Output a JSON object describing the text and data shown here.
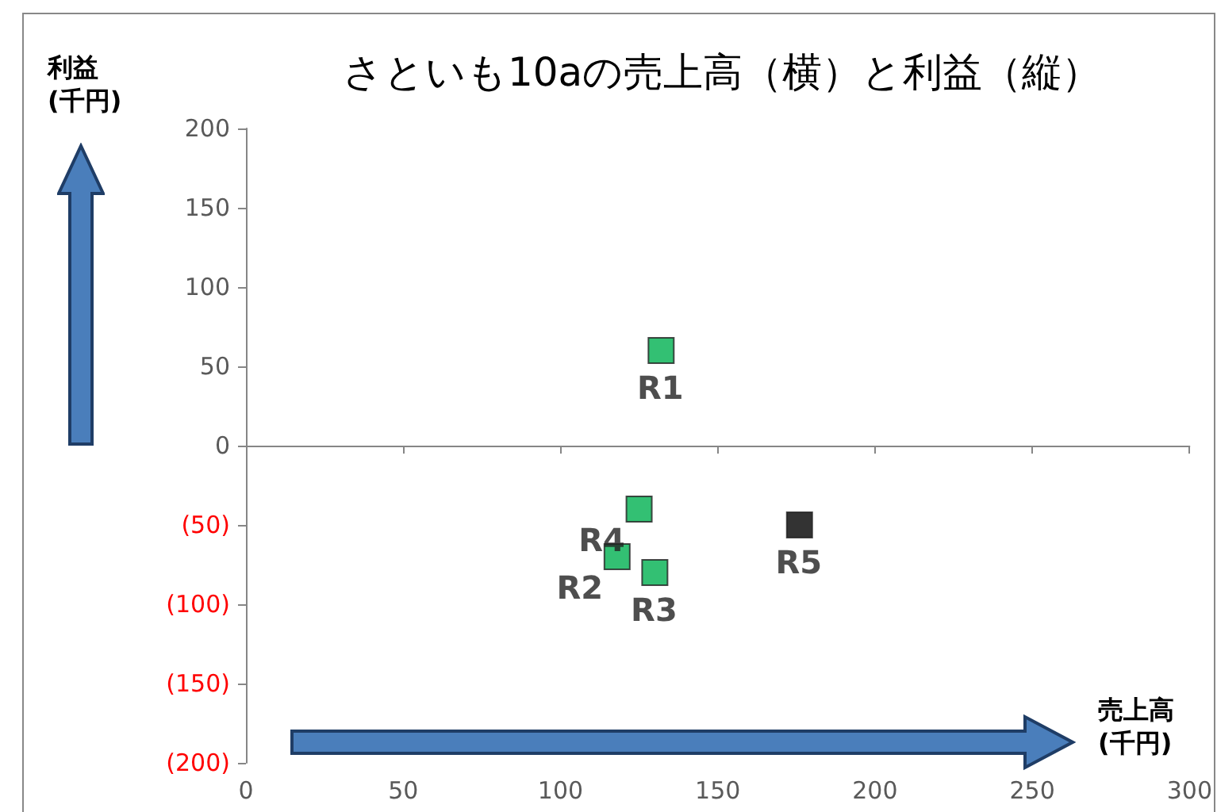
{
  "chart_data": {
    "type": "scatter",
    "title": "さといも10aの売上高（横）と利益（縦）",
    "xlabel": "売上高\n(千円)",
    "ylabel": "利益\n(千円)",
    "x": [
      132,
      118,
      130,
      125,
      176
    ],
    "series": [
      {
        "colors": [
          "#00b050",
          "#00b050",
          "#00b050",
          "#00b050",
          "#000000"
        ],
        "values": [
          60,
          -70,
          -80,
          -40,
          -50
        ],
        "value_labels": [
          "R1",
          "R2",
          "R3",
          "R4",
          "R5"
        ]
      }
    ],
    "xlim": [
      0,
      300
    ],
    "xticks": [
      0,
      50,
      100,
      150,
      200,
      250,
      300
    ],
    "ylim": [
      -200,
      200
    ],
    "yticks": [
      {
        "value": -200,
        "label": "(200)"
      },
      {
        "value": -150,
        "label": "(150)"
      },
      {
        "value": -100,
        "label": "(100)"
      },
      {
        "value": -50,
        "label": "(50)"
      },
      0,
      50,
      100,
      150,
      200
    ],
    "marker": "square"
  }
}
